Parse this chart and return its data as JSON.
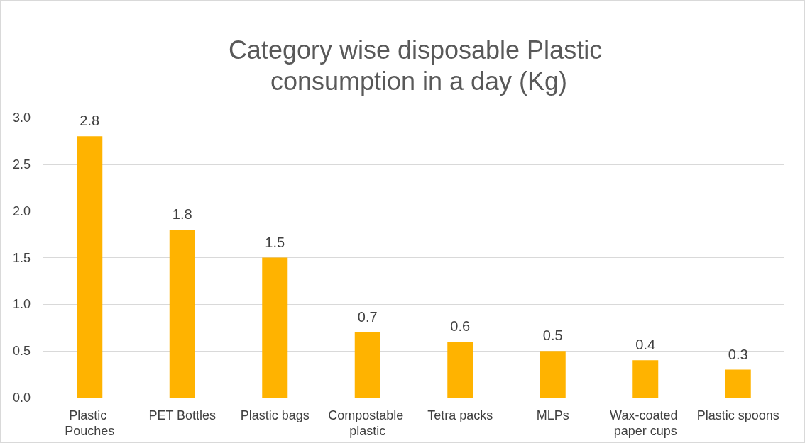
{
  "chart_data": {
    "type": "bar",
    "title": "Category wise disposable Plastic consumption in a day (Kg)",
    "categories": [
      "Plastic Pouches",
      "PET Bottles",
      "Plastic bags",
      "Compostable plastic",
      "Tetra packs",
      "MLPs",
      "Wax-coated paper cups",
      "Plastic spoons"
    ],
    "values": [
      2.8,
      1.8,
      1.5,
      0.7,
      0.6,
      0.5,
      0.4,
      0.3
    ],
    "color": "#ffb300",
    "ylim": [
      0,
      3
    ],
    "yticks": [
      {
        "value": 0,
        "label": "0.0"
      },
      {
        "value": 0.5,
        "label": "0.5"
      },
      {
        "value": 1,
        "label": "1.0"
      },
      {
        "value": 1.5,
        "label": "1.5"
      },
      {
        "value": 2,
        "label": "2.0"
      },
      {
        "value": 2.5,
        "label": "2.5"
      },
      {
        "value": 3,
        "label": "3.0"
      }
    ],
    "grid": "y",
    "data_labels": true
  }
}
